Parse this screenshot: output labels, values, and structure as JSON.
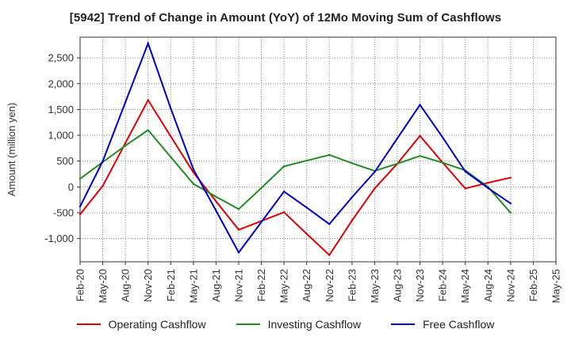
{
  "chart_data": {
    "type": "line",
    "title": "[5942]  Trend of Change in Amount (YoY) of 12Mo Moving Sum of Cashflows",
    "xlabel": "",
    "ylabel": "Amount (million yen)",
    "ylim": [
      -1450,
      2900
    ],
    "yticks": [
      -1000,
      -500,
      0,
      500,
      1000,
      1500,
      2000,
      2500
    ],
    "ytick_labels": [
      "-1,000",
      "-500",
      "0",
      "500",
      "1,000",
      "1,500",
      "2,000",
      "2,500"
    ],
    "grid": true,
    "legend_position": "bottom",
    "categories": [
      "Feb-20",
      "May-20",
      "Aug-20",
      "Nov-20",
      "Feb-21",
      "May-21",
      "Aug-21",
      "Nov-21",
      "Feb-22",
      "May-22",
      "Aug-22",
      "Nov-22",
      "Feb-23",
      "May-23",
      "Aug-23",
      "Nov-23",
      "Feb-24",
      "May-24",
      "Aug-24",
      "Nov-24",
      "Feb-25",
      "May-25"
    ],
    "series": [
      {
        "name": "Operating Cashflow",
        "color": "#e00000",
        "values": [
          -530,
          20,
          850,
          1680,
          980,
          280,
          -280,
          -830,
          -660,
          -490,
          -910,
          -1320,
          -650,
          -30,
          450,
          990,
          470,
          -30,
          80,
          180,
          null,
          null
        ]
      },
      {
        "name": "Investing Cashflow",
        "color": "#228B22",
        "values": [
          160,
          480,
          800,
          1100,
          580,
          60,
          -190,
          -430,
          -20,
          400,
          510,
          620,
          460,
          310,
          450,
          600,
          470,
          320,
          0,
          -500,
          null,
          null
        ]
      },
      {
        "name": "Free Cashflow",
        "color": "#0000cc",
        "values": [
          -380,
          500,
          1640,
          2780,
          1520,
          340,
          -460,
          -1270,
          -680,
          -90,
          -400,
          -720,
          -200,
          290,
          940,
          1590,
          960,
          300,
          -20,
          -320,
          null,
          null
        ]
      }
    ]
  }
}
